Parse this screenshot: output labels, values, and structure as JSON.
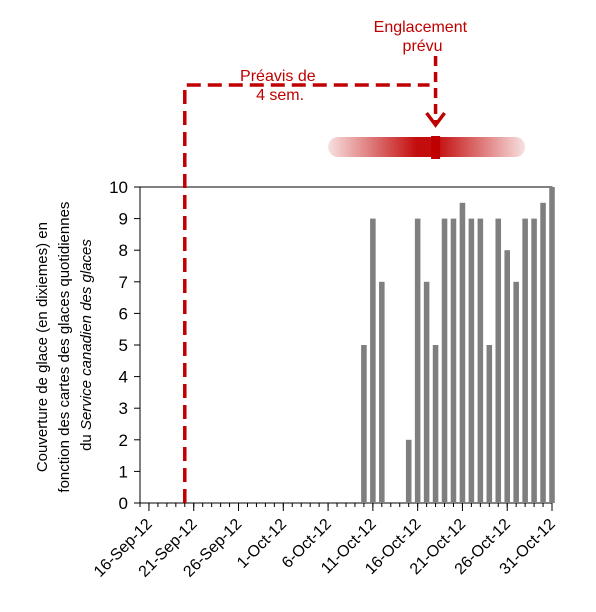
{
  "chart_data": {
    "type": "bar",
    "title": "",
    "ylabel": {
      "line1": "Couverture de glace (en dixiemes) en",
      "line2": "fonction des cartes des glaces quotidiennes",
      "line3_prefix": "du ",
      "line3_italic": "Service canadien des glaces"
    },
    "xlabel": "",
    "x_range": [
      "2012-09-15",
      "2012-10-31"
    ],
    "ylim": [
      0,
      10
    ],
    "yticks": [
      0,
      1,
      2,
      3,
      4,
      5,
      6,
      7,
      8,
      9,
      10
    ],
    "xtick_labels": [
      "16-Sep-12",
      "21-Sep-12",
      "26-Sep-12",
      "1-Oct-12",
      "6-Oct-12",
      "11-Oct-12",
      "16-Oct-12",
      "21-Oct-12",
      "26-Oct-12",
      "31-Oct-12"
    ],
    "xtick_dates": [
      "2012-09-16",
      "2012-09-21",
      "2012-09-26",
      "2012-10-01",
      "2012-10-06",
      "2012-10-11",
      "2012-10-16",
      "2012-10-21",
      "2012-10-26",
      "2012-10-31"
    ],
    "bar_color": "#7f7f7f",
    "series": [
      {
        "dates": [
          "2012-10-10",
          "2012-10-11",
          "2012-10-12",
          "2012-10-15",
          "2012-10-16",
          "2012-10-17",
          "2012-10-18",
          "2012-10-19",
          "2012-10-20",
          "2012-10-21",
          "2012-10-22",
          "2012-10-23",
          "2012-10-24",
          "2012-10-25",
          "2012-10-26",
          "2012-10-27",
          "2012-10-28",
          "2012-10-29",
          "2012-10-30",
          "2012-10-31"
        ],
        "values": [
          5,
          9,
          7,
          2,
          9,
          7,
          5,
          9,
          9,
          9.5,
          9,
          9,
          5,
          9,
          8,
          7,
          9,
          9,
          9.5,
          10
        ]
      }
    ],
    "annotations": {
      "color": "#c00000",
      "freeze_up_label_line1": "Englacement",
      "freeze_up_label_line2": "prévu",
      "freeze_up_date": "2012-10-18",
      "notice_label_line1": "Préavis de",
      "notice_label_line2": "4 sem.",
      "notice_date": "2012-09-20",
      "uncertainty_start": "2012-10-06",
      "uncertainty_end": "2012-10-28"
    }
  }
}
